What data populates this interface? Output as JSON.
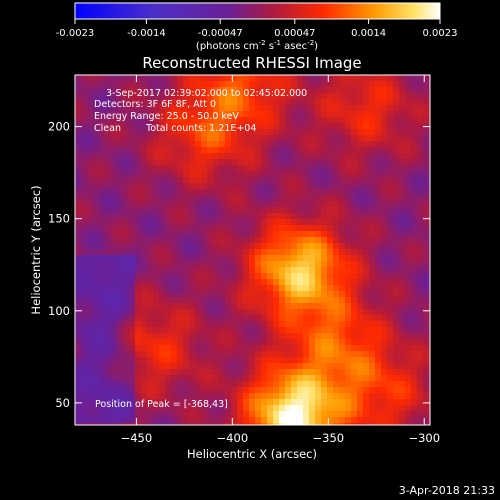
{
  "colorbar": {
    "tick_labels": [
      "-0.0023",
      "-0.0014",
      "-0.00047",
      "0.00047",
      "0.0014",
      "0.0023"
    ],
    "tick_values": [
      -0.0023,
      -0.0014,
      -0.00047,
      0.00047,
      0.0014,
      0.0023
    ],
    "range": [
      -0.0023,
      0.0023
    ],
    "units_main": "(photons cm",
    "units_exp1": "-2",
    "units_mid": " s",
    "units_exp2": "-1",
    "units_end": " asec",
    "units_exp3": "-2",
    "units_close": ")"
  },
  "chart_data": {
    "type": "heatmap",
    "title": "Reconstructed RHESSI Image",
    "xlabel": "Heliocentric X (arcsec)",
    "ylabel": "Heliocentric Y (arcsec)",
    "xlim": [
      -482,
      -297
    ],
    "ylim": [
      38,
      228
    ],
    "x_ticks": [
      -450,
      -400,
      -350,
      -300
    ],
    "y_ticks": [
      50,
      100,
      150,
      200
    ],
    "x_tick_labels": [
      "−450",
      "−400",
      "−350",
      "−300"
    ],
    "y_tick_labels": [
      "50",
      "100",
      "150",
      "200"
    ],
    "annotations": [
      "3-Sep-2017 02:39:02.000 to 02:45:02.000",
      "Detectors: 3F 6F 8F, Att 0",
      "Energy Range: 25.0 - 50.0 keV",
      "Clean",
      "Total counts: 1.21E+04"
    ],
    "peak_label": "Position of Peak = [-368,43]",
    "peak": [
      -368,
      43
    ],
    "sources": [
      {
        "x": -368,
        "y": 43,
        "intensity": 0.0023
      },
      {
        "x": -365,
        "y": 122,
        "intensity": 0.0019
      },
      {
        "x": -345,
        "y": 82,
        "intensity": 0.001
      },
      {
        "x": -395,
        "y": 222,
        "intensity": 0.001
      },
      {
        "x": -415,
        "y": 195,
        "intensity": 0.0009
      },
      {
        "x": -330,
        "y": 210,
        "intensity": 0.0008
      },
      {
        "x": -440,
        "y": 80,
        "intensity": 0.0008
      },
      {
        "x": -320,
        "y": 55,
        "intensity": 0.0008
      }
    ]
  },
  "timestamp": "3-Apr-2018 21:33"
}
